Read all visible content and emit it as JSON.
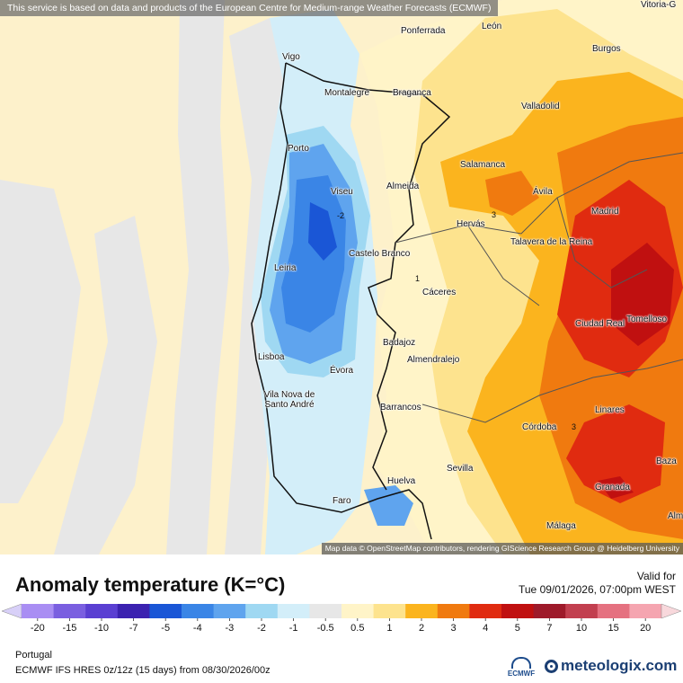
{
  "header": {
    "notice": "This service is based on data and products of the European Centre for Medium-range Weather Forecasts (ECMWF)"
  },
  "map": {
    "attribution": "Map data © OpenStreetMap contributors, rendering GIScience Research Group @ Heidelberg University",
    "cities": [
      "Vitoria-G",
      "Ponferrada",
      "León",
      "Vigo",
      "Burgos",
      "Montalegre",
      "Bragança",
      "Valladolid",
      "Porto",
      "Salamanca",
      "Viseu",
      "Almeida",
      "Ávila",
      "Madrid",
      "Hervás",
      "Talavera de la Reina",
      "Castelo Branco",
      "Leiria",
      "Cáceres",
      "Tomelloso",
      "Ciudad Real",
      "Badajoz",
      "Almendralejo",
      "Lisboa",
      "Évora",
      "Vila Nova de Santo André",
      "Barrancos",
      "Linares",
      "Córdoba",
      "Baza",
      "Sevilla",
      "Huelva",
      "Granada",
      "Faro",
      "Málaga",
      "Alm"
    ],
    "contour_labels": [
      "-2",
      "3",
      "1",
      "3"
    ]
  },
  "legend": {
    "title": "Anomaly temperature (K=°C)",
    "ticks": [
      "-20",
      "-15",
      "-10",
      "-7",
      "-5",
      "-4",
      "-3",
      "-2",
      "-1",
      "-0.5",
      "0.5",
      "1",
      "2",
      "3",
      "4",
      "5",
      "7",
      "10",
      "15",
      "20"
    ],
    "colors": [
      "#a98ef3",
      "#7a5fe0",
      "#5a3fd2",
      "#3b22b0",
      "#1a56d6",
      "#3a85e6",
      "#5fa4ee",
      "#9fd8f2",
      "#d3eef9",
      "#e7e7e7",
      "#fff4c8",
      "#fde38e",
      "#fbb41e",
      "#f07a0f",
      "#e02b10",
      "#c01010",
      "#9e1a2a",
      "#c23f4f",
      "#e57180",
      "#f5a5b0"
    ],
    "end_color_left": "#d8d0f8",
    "end_color_right": "#f8d8dc"
  },
  "footer": {
    "valid_label": "Valid for",
    "valid_time": "Tue 09/01/2026, 07:00pm WEST",
    "region": "Portugal",
    "model_run": "ECMWF IFS HRES 0z/12z (15 days) from  08/30/2026/00z",
    "ecmwf_logo": "ECMWF",
    "brand": "meteologix.com"
  }
}
